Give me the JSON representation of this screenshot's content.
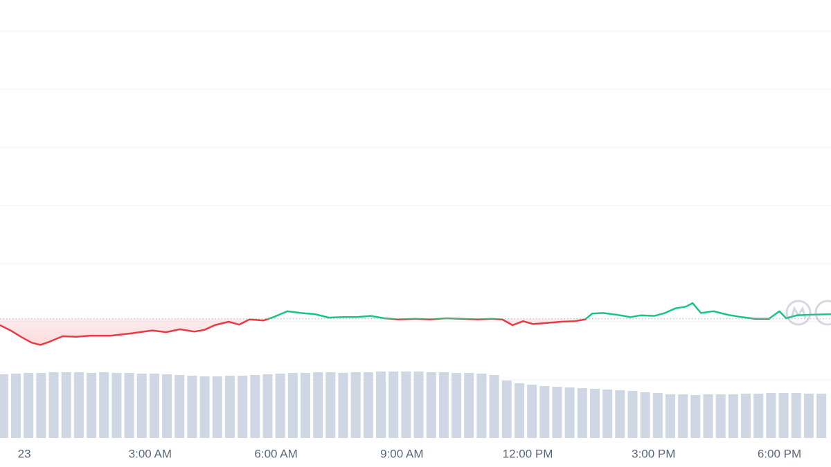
{
  "chart_data": {
    "type": "line",
    "xlim": [
      -0.58,
      19.23
    ],
    "xticks": [
      {
        "value": 0,
        "label": "23"
      },
      {
        "value": 3,
        "label": "3:00 AM"
      },
      {
        "value": 6,
        "label": "6:00 AM"
      },
      {
        "value": 9,
        "label": "9:00 AM"
      },
      {
        "value": 12,
        "label": "12:00 PM"
      },
      {
        "value": 15,
        "label": "3:00 PM"
      },
      {
        "value": 18,
        "label": "6:00 PM"
      }
    ],
    "ylim": [
      0,
      7.5
    ],
    "yticks": [
      1,
      2,
      3,
      4,
      5,
      6,
      7
    ],
    "grid": true,
    "reference": 2.05,
    "up_color": "#16c784",
    "down_color": "#ea3943",
    "x": [
      -0.58,
      -0.33,
      -0.08,
      0.17,
      0.38,
      0.58,
      0.91,
      1.24,
      1.57,
      2.06,
      2.56,
      3.05,
      3.38,
      3.71,
      4.05,
      4.29,
      4.54,
      4.87,
      5.12,
      5.37,
      5.7,
      5.94,
      6.27,
      6.6,
      6.93,
      7.26,
      7.6,
      7.93,
      8.25,
      8.58,
      8.92,
      9.33,
      9.66,
      10.07,
      10.4,
      10.81,
      11.14,
      11.39,
      11.64,
      11.89,
      12.13,
      12.46,
      12.8,
      13.13,
      13.37,
      13.54,
      13.79,
      14.12,
      14.45,
      14.69,
      15.02,
      15.27,
      15.52,
      15.77,
      15.93,
      16.13,
      16.43,
      16.76,
      17.09,
      17.42,
      17.75,
      18.0,
      18.16,
      18.41,
      18.74,
      19.23
    ],
    "values": [
      1.94,
      1.85,
      1.74,
      1.64,
      1.6,
      1.65,
      1.75,
      1.74,
      1.76,
      1.76,
      1.8,
      1.85,
      1.82,
      1.87,
      1.83,
      1.86,
      1.94,
      2.0,
      1.95,
      2.04,
      2.02,
      2.08,
      2.18,
      2.15,
      2.13,
      2.07,
      2.08,
      2.08,
      2.1,
      2.06,
      2.04,
      2.05,
      2.04,
      2.06,
      2.05,
      2.04,
      2.05,
      2.04,
      1.94,
      2.01,
      1.96,
      1.98,
      2.0,
      2.01,
      2.04,
      2.14,
      2.15,
      2.12,
      2.08,
      2.11,
      2.1,
      2.15,
      2.23,
      2.26,
      2.32,
      2.15,
      2.18,
      2.12,
      2.08,
      2.05,
      2.05,
      2.18,
      2.06,
      2.11,
      2.12,
      2.13
    ],
    "volume": {
      "color": "#cfd6e4",
      "y2lim": [
        0,
        100
      ],
      "x": [
        -0.5,
        -0.2,
        0.1,
        0.4,
        0.7,
        1.0,
        1.3,
        1.6,
        1.9,
        2.2,
        2.5,
        2.8,
        3.1,
        3.4,
        3.7,
        4.0,
        4.3,
        4.6,
        4.9,
        5.2,
        5.5,
        5.8,
        6.1,
        6.4,
        6.7,
        7.0,
        7.3,
        7.6,
        7.9,
        8.2,
        8.5,
        8.8,
        9.1,
        9.4,
        9.7,
        10.0,
        10.3,
        10.6,
        10.9,
        11.2,
        11.5,
        11.8,
        12.1,
        12.4,
        12.7,
        13.0,
        13.3,
        13.6,
        13.9,
        14.2,
        14.5,
        14.8,
        15.1,
        15.4,
        15.7,
        16.0,
        16.3,
        16.6,
        16.9,
        17.2,
        17.5,
        17.8,
        18.1,
        18.4,
        18.7,
        19.0
      ],
      "values": [
        92,
        93,
        94,
        94,
        95,
        95,
        95,
        94,
        95,
        94,
        94,
        93,
        93,
        92,
        91,
        90,
        89,
        89,
        90,
        90,
        91,
        92,
        93,
        94,
        94,
        95,
        95,
        94,
        95,
        95,
        96,
        96,
        96,
        96,
        95,
        95,
        94,
        94,
        93,
        91,
        83,
        79,
        77,
        75,
        74,
        73,
        72,
        71,
        70,
        69,
        68,
        66,
        65,
        63,
        63,
        62,
        63,
        63,
        63,
        64,
        64,
        65,
        65,
        65,
        64,
        64
      ]
    }
  }
}
